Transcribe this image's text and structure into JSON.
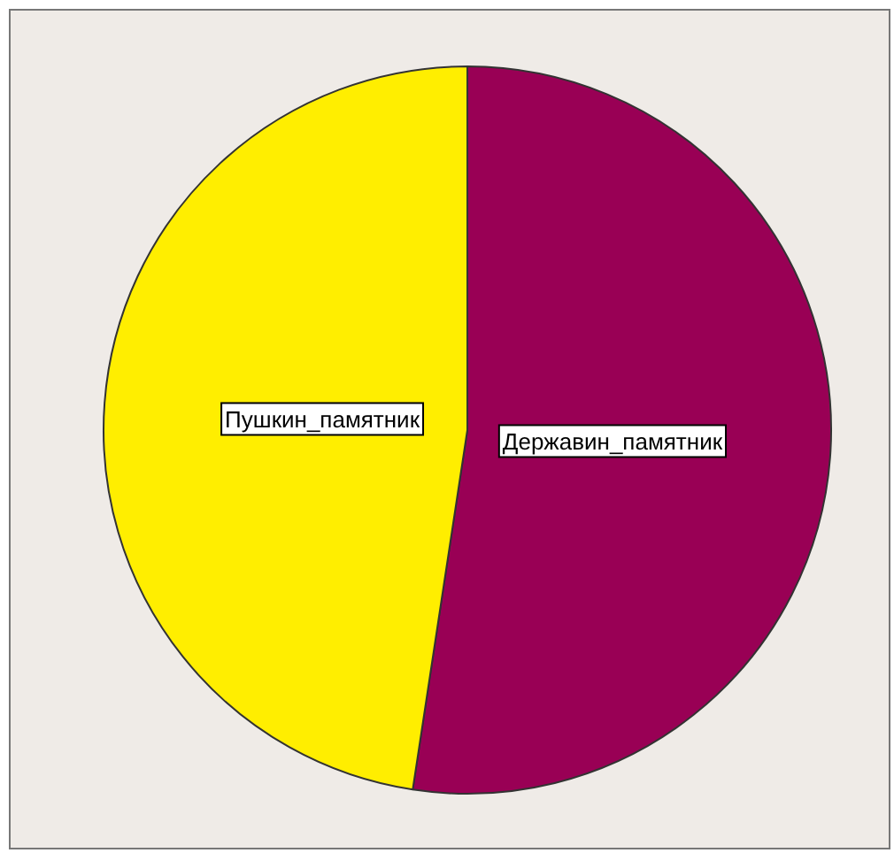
{
  "chart_data": {
    "type": "pie",
    "categories": [
      "Державин_памятник",
      "Пушкин_памятник"
    ],
    "values": [
      52.4,
      47.6
    ],
    "colors": [
      "#990055",
      "#ffee00"
    ],
    "legend": false
  }
}
